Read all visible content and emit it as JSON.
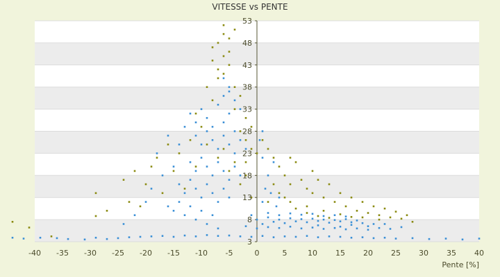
{
  "chart_data": {
    "type": "scatter",
    "title": "VITESSE vs PENTE",
    "xlabel": "Pente [%]",
    "ylabel": "",
    "xlim": [
      -40,
      40
    ],
    "ylim": [
      3,
      53
    ],
    "x_ticks": [
      -40,
      -35,
      -30,
      -25,
      -20,
      -15,
      -10,
      -5,
      0,
      5,
      10,
      15,
      20,
      25,
      30,
      35,
      40
    ],
    "y_ticks": [
      3,
      8,
      13,
      18,
      23,
      28,
      33,
      38,
      43,
      48,
      53
    ],
    "grid": true,
    "legend": "none",
    "background": "#f1f4dc",
    "plot_band_colors": [
      "#ececec",
      "#ffffff"
    ],
    "series": [
      {
        "color": "#3a8fd6",
        "points": [
          [
            -44,
            3.9
          ],
          [
            -42,
            3.7
          ],
          [
            -39,
            3.9
          ],
          [
            -36,
            3.8
          ],
          [
            -34,
            3.6
          ],
          [
            -31,
            3.5
          ],
          [
            -29,
            3.9
          ],
          [
            -27,
            3.6
          ],
          [
            -25,
            3.8
          ],
          [
            -23,
            4.0
          ],
          [
            -21,
            4.1
          ],
          [
            -19,
            4.2
          ],
          [
            -17,
            4.3
          ],
          [
            -15,
            4.1
          ],
          [
            -13,
            4.4
          ],
          [
            -11,
            4.2
          ],
          [
            -9,
            4.5
          ],
          [
            -7,
            4.3
          ],
          [
            -5,
            4.4
          ],
          [
            -3,
            4.2
          ],
          [
            -1,
            4.1
          ],
          [
            1,
            4.3
          ],
          [
            3,
            4.0
          ],
          [
            5,
            4.2
          ],
          [
            7,
            4.1
          ],
          [
            9,
            4.3
          ],
          [
            11,
            4.0
          ],
          [
            13,
            4.2
          ],
          [
            15,
            4.1
          ],
          [
            17,
            3.9
          ],
          [
            19,
            4.0
          ],
          [
            21,
            3.8
          ],
          [
            23,
            3.9
          ],
          [
            25,
            3.7
          ],
          [
            28,
            3.8
          ],
          [
            31,
            3.6
          ],
          [
            34,
            3.7
          ],
          [
            37,
            3.5
          ],
          [
            40,
            3.7
          ],
          [
            -12,
            32
          ],
          [
            -11,
            30
          ],
          [
            -10,
            33
          ],
          [
            -9,
            31
          ],
          [
            -8,
            29
          ],
          [
            -7,
            34
          ],
          [
            -6,
            30
          ],
          [
            -5,
            32
          ],
          [
            -4,
            28
          ],
          [
            -3,
            33
          ],
          [
            -11,
            27
          ],
          [
            -10,
            25
          ],
          [
            -9,
            28
          ],
          [
            -8,
            26
          ],
          [
            -7,
            24
          ],
          [
            -6,
            27
          ],
          [
            -5,
            25
          ],
          [
            -4,
            23
          ],
          [
            -3,
            26
          ],
          [
            -2,
            24
          ],
          [
            -12,
            21
          ],
          [
            -11,
            19
          ],
          [
            -10,
            22
          ],
          [
            -9,
            20
          ],
          [
            -8,
            18
          ],
          [
            -7,
            21
          ],
          [
            -6,
            19
          ],
          [
            -5,
            17
          ],
          [
            -4,
            20
          ],
          [
            -3,
            18
          ],
          [
            -14,
            16
          ],
          [
            -13,
            14
          ],
          [
            -12,
            17
          ],
          [
            -11,
            15
          ],
          [
            -10,
            13
          ],
          [
            -9,
            16
          ],
          [
            -8,
            14
          ],
          [
            -7,
            12
          ],
          [
            -6,
            15
          ],
          [
            -5,
            13
          ],
          [
            -16,
            11
          ],
          [
            -15,
            10
          ],
          [
            -14,
            12
          ],
          [
            -13,
            9
          ],
          [
            -12,
            11
          ],
          [
            -11,
            8
          ],
          [
            -10,
            10
          ],
          [
            -9,
            7
          ],
          [
            -8,
            9
          ],
          [
            -7,
            6
          ],
          [
            -6,
            36
          ],
          [
            -5,
            38
          ],
          [
            -4,
            35
          ],
          [
            -6,
            40
          ],
          [
            -5,
            37
          ],
          [
            -18,
            23
          ],
          [
            -16,
            27
          ],
          [
            -14,
            25
          ],
          [
            -13,
            29
          ],
          [
            -15,
            20
          ],
          [
            -17,
            18
          ],
          [
            -19,
            15
          ],
          [
            -20,
            12
          ],
          [
            -22,
            9
          ],
          [
            -24,
            7
          ],
          [
            -1,
            9
          ],
          [
            0,
            8
          ],
          [
            1,
            7
          ],
          [
            2,
            8.5
          ],
          [
            3,
            7.5
          ],
          [
            4,
            8
          ],
          [
            5,
            7.2
          ],
          [
            6,
            8.3
          ],
          [
            7,
            7.6
          ],
          [
            8,
            8.1
          ],
          [
            9,
            7.4
          ],
          [
            10,
            8.2
          ],
          [
            11,
            7.7
          ],
          [
            12,
            8.0
          ],
          [
            13,
            7.3
          ],
          [
            14,
            7.9
          ],
          [
            15,
            7.6
          ],
          [
            16,
            8.1
          ],
          [
            17,
            7.4
          ],
          [
            18,
            7.8
          ],
          [
            2,
            9.5
          ],
          [
            4,
            9.0
          ],
          [
            6,
            9.4
          ],
          [
            8,
            9.1
          ],
          [
            10,
            9.3
          ],
          [
            12,
            8.8
          ],
          [
            14,
            9.0
          ],
          [
            16,
            8.7
          ],
          [
            19,
            7.2
          ],
          [
            21,
            7.0
          ],
          [
            -2,
            6.5
          ],
          [
            0,
            6.0
          ],
          [
            2,
            6.3
          ],
          [
            4,
            6.1
          ],
          [
            6,
            6.4
          ],
          [
            8,
            6.0
          ],
          [
            10,
            6.2
          ],
          [
            12,
            5.9
          ],
          [
            14,
            6.1
          ],
          [
            16,
            5.8
          ],
          [
            18,
            6.0
          ],
          [
            20,
            5.7
          ],
          [
            22,
            6.1
          ],
          [
            24,
            5.9
          ],
          [
            26,
            6.3
          ],
          [
            23,
            7.0
          ],
          [
            20,
            6.5
          ],
          [
            17,
            6.8
          ],
          [
            15,
            6.4
          ],
          [
            11,
            6.7
          ],
          [
            1,
            12
          ],
          [
            1.5,
            15
          ],
          [
            2,
            18
          ],
          [
            3,
            21
          ],
          [
            3.5,
            11
          ],
          [
            4,
            13
          ],
          [
            2.5,
            14
          ],
          [
            1,
            22
          ],
          [
            0.5,
            26
          ],
          [
            1,
            28
          ]
        ]
      },
      {
        "color": "#8a8a10",
        "points": [
          [
            -44,
            7.5
          ],
          [
            -41,
            6.2
          ],
          [
            -37,
            4.2
          ],
          [
            -29,
            8.8
          ],
          [
            -29,
            14
          ],
          [
            -27,
            10
          ],
          [
            -24,
            17
          ],
          [
            -23,
            12
          ],
          [
            -22,
            19
          ],
          [
            -21,
            11
          ],
          [
            -20,
            16
          ],
          [
            -19,
            20
          ],
          [
            -18,
            22
          ],
          [
            -17,
            14
          ],
          [
            -16,
            25
          ],
          [
            -15,
            19
          ],
          [
            -14,
            23
          ],
          [
            -13,
            15
          ],
          [
            -12,
            26
          ],
          [
            -11,
            20
          ],
          [
            -8,
            44
          ],
          [
            -7,
            48
          ],
          [
            -6,
            50
          ],
          [
            -5,
            46
          ],
          [
            -6,
            52
          ],
          [
            -7,
            42
          ],
          [
            -5,
            49
          ],
          [
            -8,
            47
          ],
          [
            -4,
            51
          ],
          [
            -6,
            45
          ],
          [
            -7,
            40
          ],
          [
            -5,
            43
          ],
          [
            -4,
            38
          ],
          [
            -6,
            41
          ],
          [
            -3,
            36
          ],
          [
            -8,
            35
          ],
          [
            -9,
            38
          ],
          [
            -4,
            33
          ],
          [
            -2,
            31
          ],
          [
            -3,
            28
          ],
          [
            -1,
            29
          ],
          [
            -2,
            26
          ],
          [
            -1,
            24
          ],
          [
            -2,
            21
          ],
          [
            0,
            23
          ],
          [
            1,
            26
          ],
          [
            2,
            24
          ],
          [
            3,
            22
          ],
          [
            4,
            20
          ],
          [
            5,
            18
          ],
          [
            6,
            16
          ],
          [
            7,
            21
          ],
          [
            8,
            17
          ],
          [
            9,
            15
          ],
          [
            10,
            14
          ],
          [
            11,
            17
          ],
          [
            12,
            13
          ],
          [
            13,
            16
          ],
          [
            14,
            12
          ],
          [
            15,
            14
          ],
          [
            16,
            11
          ],
          [
            17,
            13
          ],
          [
            18,
            10
          ],
          [
            19,
            12
          ],
          [
            20,
            9.5
          ],
          [
            21,
            11
          ],
          [
            22,
            9
          ],
          [
            23,
            10.5
          ],
          [
            24,
            8.5
          ],
          [
            25,
            9.8
          ],
          [
            26,
            8.2
          ],
          [
            27,
            9.0
          ],
          [
            28,
            7.5
          ],
          [
            22,
            8
          ],
          [
            19,
            8.5
          ],
          [
            15,
            9.2
          ],
          [
            12,
            10
          ],
          [
            9,
            11
          ],
          [
            6,
            12
          ],
          [
            4,
            14
          ],
          [
            2,
            12
          ],
          [
            3,
            16
          ],
          [
            5,
            13
          ],
          [
            7,
            10.5
          ],
          [
            9,
            9.5
          ],
          [
            11,
            8.8
          ],
          [
            13,
            8.4
          ],
          [
            17,
            8.6
          ],
          [
            10,
            19
          ],
          [
            6,
            22
          ],
          [
            -1,
            13
          ],
          [
            -3,
            16
          ],
          [
            -5,
            19
          ],
          [
            -7,
            22
          ],
          [
            -9,
            25
          ],
          [
            -10,
            29
          ],
          [
            -11,
            32
          ],
          [
            -2,
            18
          ],
          [
            -4,
            21
          ],
          [
            -6,
            24
          ]
        ]
      }
    ]
  }
}
